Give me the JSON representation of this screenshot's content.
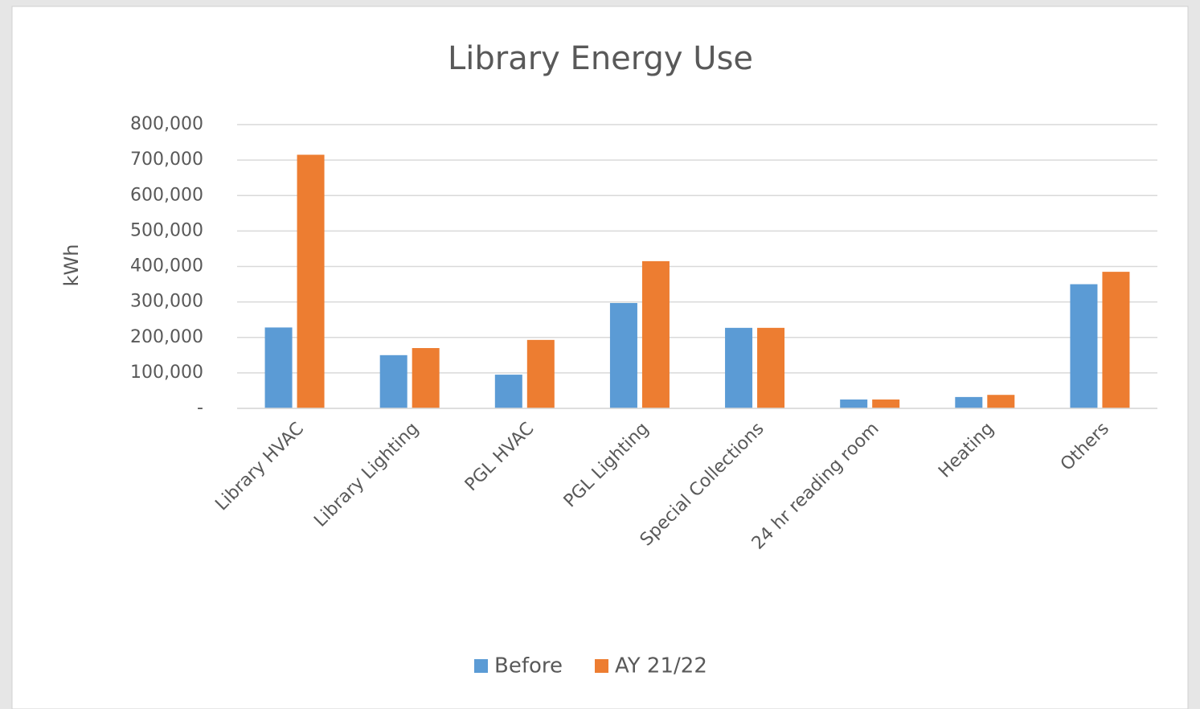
{
  "chart_data": {
    "type": "bar",
    "title": "Library Energy Use",
    "y_label": "kWh",
    "categories": [
      "Library HVAC",
      "Library Lighting",
      "PGL HVAC",
      "PGL Lighting",
      "Special Collections",
      "24 hr reading room",
      "Heating",
      "Others"
    ],
    "series": [
      {
        "name": "Before",
        "color": "#5b9bd5",
        "values": [
          228000,
          150000,
          95000,
          297000,
          227000,
          25000,
          32000,
          350000
        ]
      },
      {
        "name": "AY 21/22",
        "color": "#ed7d31",
        "values": [
          715000,
          170000,
          193000,
          415000,
          227000,
          25000,
          38000,
          385000
        ]
      }
    ],
    "ylim": [
      0,
      800000
    ],
    "yticks": [
      {
        "value": 0,
        "label": "-"
      },
      {
        "value": 100000,
        "label": "100,000"
      },
      {
        "value": 200000,
        "label": "200,000"
      },
      {
        "value": 300000,
        "label": "300,000"
      },
      {
        "value": 400000,
        "label": "400,000"
      },
      {
        "value": 500000,
        "label": "500,000"
      },
      {
        "value": 600000,
        "label": "600,000"
      },
      {
        "value": 700000,
        "label": "700,000"
      },
      {
        "value": 800000,
        "label": "800,000"
      }
    ],
    "grid": true,
    "legend": "bottom"
  }
}
